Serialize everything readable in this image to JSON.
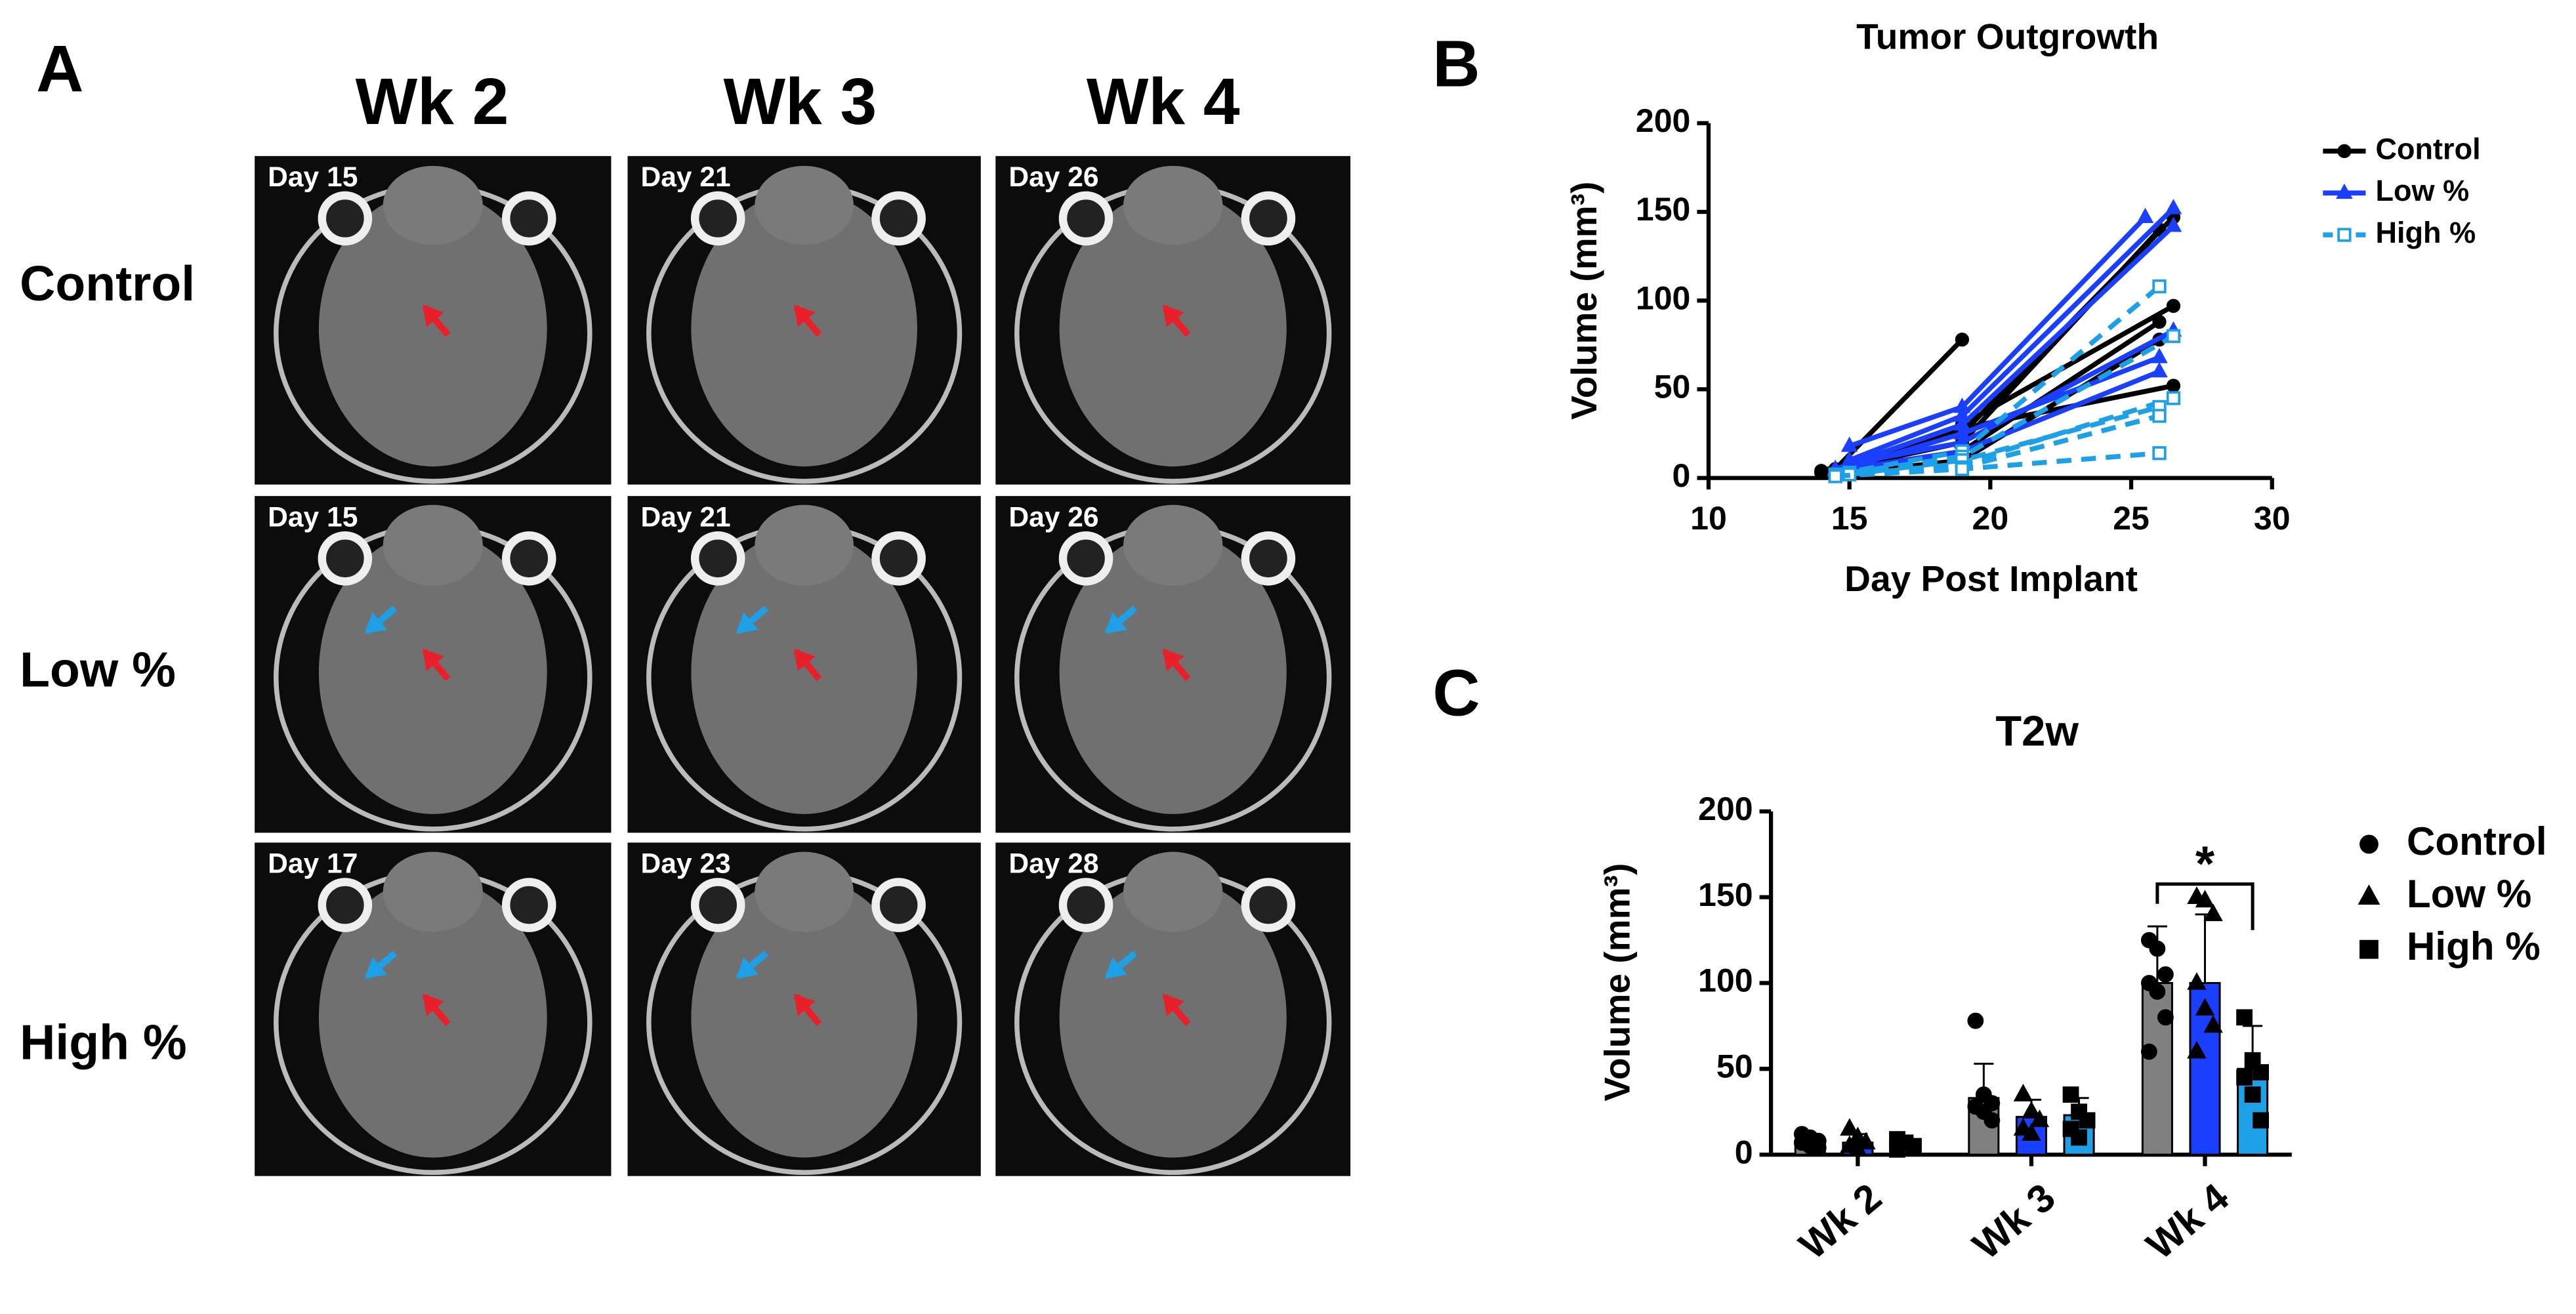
{
  "panel_a": {
    "letter": "A",
    "columns": [
      "Wk 2",
      "Wk 3",
      "Wk 4"
    ],
    "rows": [
      {
        "label": "Control",
        "days": [
          "Day 15",
          "Day 21",
          "Day 26"
        ]
      },
      {
        "label": "Low %",
        "days": [
          "Day 15",
          "Day 21",
          "Day 26"
        ]
      },
      {
        "label": "High %",
        "days": [
          "Day 17",
          "Day 23",
          "Day 28"
        ]
      }
    ]
  },
  "chart_data": [
    {
      "type": "line",
      "letter": "B",
      "title": "Tumor Outgrowth",
      "xlabel": "Day Post Implant",
      "ylabel": "Volume (mm³)",
      "xlim": [
        10,
        30
      ],
      "xticks": [
        10,
        15,
        20,
        25,
        30
      ],
      "ylim": [
        0,
        200
      ],
      "yticks": [
        0,
        50,
        100,
        150,
        200
      ],
      "series": [
        {
          "name": "Control",
          "color": "#000000",
          "marker": "circle",
          "dashed": false,
          "filled": true,
          "lines": [
            {
              "x": [
                14.5,
                19
              ],
              "values": [
                5,
                78
              ]
            },
            {
              "x": [
                14,
                19,
                26.5
              ],
              "values": [
                4,
                25,
                147
              ]
            },
            {
              "x": [
                14,
                19,
                26
              ],
              "values": [
                3,
                20,
                140
              ]
            },
            {
              "x": [
                14.5,
                19,
                26.5
              ],
              "values": [
                5,
                30,
                97
              ]
            },
            {
              "x": [
                14,
                19,
                26
              ],
              "values": [
                3,
                15,
                88
              ]
            },
            {
              "x": [
                15,
                19,
                26.5
              ],
              "values": [
                8,
                28,
                52
              ]
            },
            {
              "x": [
                14.5,
                19,
                26
              ],
              "values": [
                2,
                10,
                78
              ]
            }
          ]
        },
        {
          "name": "Low %",
          "color": "#1a3fff",
          "marker": "triangle",
          "dashed": false,
          "filled": true,
          "lines": [
            {
              "x": [
                15,
                19,
                25.5
              ],
              "values": [
                18,
                40,
                147
              ]
            },
            {
              "x": [
                15,
                19,
                26.5
              ],
              "values": [
                10,
                35,
                152
              ]
            },
            {
              "x": [
                14.5,
                19,
                26.5
              ],
              "values": [
                5,
                30,
                142
              ]
            },
            {
              "x": [
                15,
                19,
                26.5
              ],
              "values": [
                8,
                20,
                83
              ]
            },
            {
              "x": [
                15,
                19,
                26
              ],
              "values": [
                6,
                25,
                68
              ]
            },
            {
              "x": [
                14.5,
                19,
                26
              ],
              "values": [
                4,
                15,
                60
              ]
            }
          ]
        },
        {
          "name": "High %",
          "color": "#1ea0e6",
          "marker": "square",
          "dashed": true,
          "filled": false,
          "lines": [
            {
              "x": [
                14.5,
                19,
                26
              ],
              "values": [
                2,
                15,
                108
              ]
            },
            {
              "x": [
                15,
                19,
                26.5
              ],
              "values": [
                3,
                12,
                80
              ]
            },
            {
              "x": [
                14.5,
                19,
                26.5
              ],
              "values": [
                1,
                8,
                45
              ]
            },
            {
              "x": [
                15,
                19,
                26
              ],
              "values": [
                2,
                10,
                40
              ]
            },
            {
              "x": [
                14.5,
                19,
                26
              ],
              "values": [
                1,
                6,
                35
              ]
            },
            {
              "x": [
                14.5,
                19,
                26
              ],
              "values": [
                1,
                5,
                14
              ]
            }
          ]
        }
      ]
    },
    {
      "type": "bar",
      "letter": "C",
      "title": "T2w",
      "ylabel": "Volume (mm³)",
      "categories": [
        "Wk 2",
        "Wk 3",
        "Wk 4"
      ],
      "ylim": [
        0,
        200
      ],
      "yticks": [
        0,
        50,
        100,
        150,
        200
      ],
      "annotations": [
        "*"
      ],
      "series": [
        {
          "name": "Control",
          "color": "#808080",
          "marker": "circle",
          "values": [
            7,
            33,
            100
          ],
          "errors": [
            4,
            20,
            33
          ],
          "points": [
            [
              12,
              10,
              8,
              7,
              5,
              4
            ],
            [
              78,
              35,
              30,
              28,
              25,
              20
            ],
            [
              125,
              120,
              105,
              100,
              95,
              80,
              60
            ]
          ]
        },
        {
          "name": "Low %",
          "color": "#1a3fff",
          "marker": "triangle",
          "values": [
            7,
            22,
            100
          ],
          "errors": [
            5,
            10,
            40
          ],
          "points": [
            [
              15,
              10,
              7,
              5,
              3
            ],
            [
              35,
              25,
              20,
              15,
              12
            ],
            [
              150,
              148,
              140,
              100,
              85,
              75,
              60
            ]
          ]
        },
        {
          "name": "High %",
          "color": "#1ea0e6",
          "marker": "square",
          "values": [
            5,
            23,
            50
          ],
          "errors": [
            3,
            10,
            25
          ],
          "points": [
            [
              9,
              7,
              5,
              3
            ],
            [
              35,
              25,
              20,
              15,
              10
            ],
            [
              80,
              55,
              48,
              45,
              35,
              20
            ]
          ]
        }
      ]
    }
  ]
}
